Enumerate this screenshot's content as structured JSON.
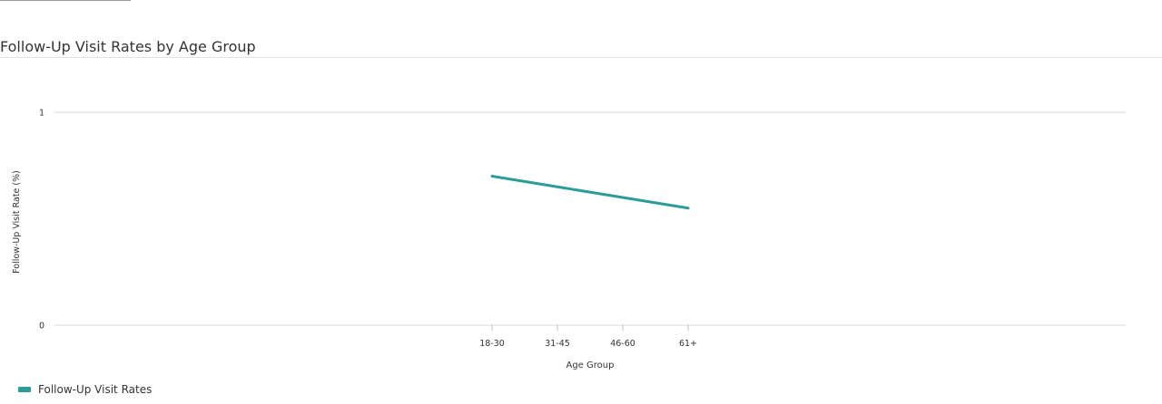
{
  "chart_data": {
    "type": "line",
    "title": "Follow-Up Visit Rates by Age Group",
    "xlabel": "Age Group",
    "ylabel": "Follow-Up Visit Rate (%)",
    "categories": [
      "18-30",
      "31-45",
      "46-60",
      "61+"
    ],
    "ylim": [
      0,
      1
    ],
    "yticks": [
      "0",
      "1"
    ],
    "series": [
      {
        "name": "Follow-Up Visit Rates",
        "color": "#2a9d9b",
        "values": [
          0.7,
          0.65,
          0.6,
          0.55
        ]
      }
    ],
    "grid": true,
    "legend_position": "bottom-left"
  }
}
